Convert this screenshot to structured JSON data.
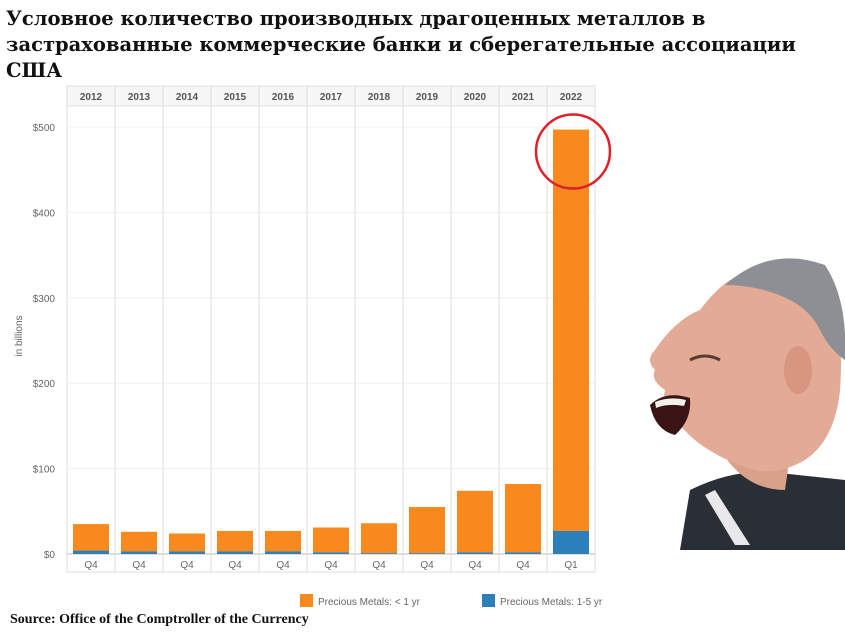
{
  "title": "Условное количество производных драгоценных металлов в застрахованные коммерческие банки и сберегательные ассоциации США",
  "source": "Source: Office of the Comptroller of the Currency",
  "colors": {
    "short": "#f7891f",
    "mid": "#2c7fb8",
    "highlight": "#e0202a",
    "grid": "#dddddd",
    "axis_text": "#666666"
  },
  "chart_data": {
    "type": "bar",
    "stacked": true,
    "years": [
      "2012",
      "2013",
      "2014",
      "2015",
      "2016",
      "2017",
      "2018",
      "2019",
      "2020",
      "2021",
      "2022"
    ],
    "categories": [
      "Q4",
      "Q4",
      "Q4",
      "Q4",
      "Q4",
      "Q4",
      "Q4",
      "Q4",
      "Q4",
      "Q4",
      "Q1"
    ],
    "series": [
      {
        "name": "Precious Metals: < 1 yr",
        "color": "#f7891f",
        "values": [
          31,
          23,
          21,
          24,
          24,
          29,
          35,
          54,
          72,
          80,
          470
        ]
      },
      {
        "name": "Precious Metals: 1-5 yr",
        "color": "#2c7fb8",
        "values": [
          4,
          3,
          3,
          3,
          3,
          2,
          1,
          1,
          2,
          2,
          27
        ]
      }
    ],
    "ylabel": "in billions",
    "yticks": [
      "$0",
      "$100",
      "$200",
      "$300",
      "$400",
      "$500"
    ],
    "ylim": [
      0,
      500
    ],
    "grid": true,
    "legend": "bottom",
    "highlight_category_index": 10
  }
}
